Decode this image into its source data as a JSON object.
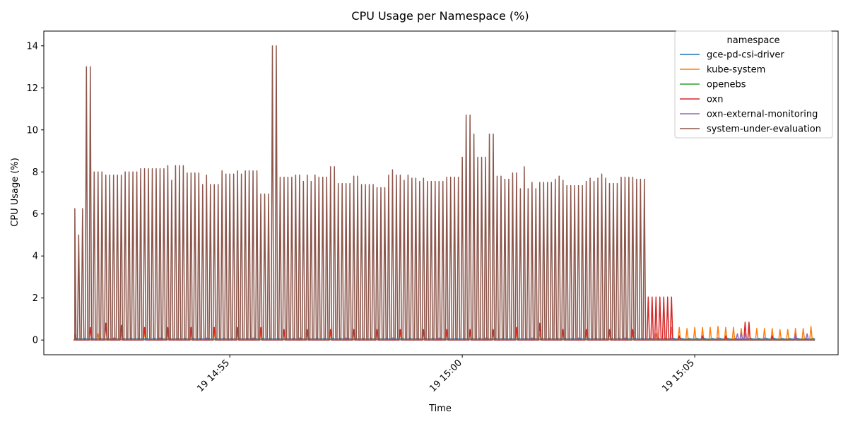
{
  "chart_data": {
    "type": "line",
    "title": "CPU Usage per Namespace (%)",
    "xlabel": "Time",
    "ylabel": "CPU Usage (%)",
    "x_ticks": [
      "19 14:55",
      "19 15:00",
      "19 15:05"
    ],
    "y_ticks": [
      "0",
      "2",
      "4",
      "6",
      "8",
      "10",
      "12",
      "14"
    ],
    "ylim": [
      -0.7,
      14.7
    ],
    "xlim": [
      "14:51:00",
      "15:08:05"
    ],
    "grid": false,
    "legend": {
      "title": "namespace",
      "placement": "top-right"
    },
    "series": [
      {
        "name": "gce-pd-csi-driver",
        "color": "#1f77b4",
        "style": "flat",
        "start": "14:51:40",
        "end": "15:07:35",
        "base": 0.05,
        "spikes": 0.08
      },
      {
        "name": "kube-system",
        "color": "#ff7f0e",
        "style": "spikes",
        "start": "14:51:40",
        "end": "15:07:35",
        "base": 0.0,
        "spikes": [
          [
            "14:51:40",
            0.25
          ],
          [
            "14:52:10",
            0.3
          ],
          [
            "14:52:40",
            0.3
          ],
          [
            "14:53:10",
            0.3
          ],
          [
            "14:53:40",
            0.3
          ],
          [
            "14:54:10",
            0.3
          ],
          [
            "14:54:40",
            0.3
          ],
          [
            "14:55:10",
            0.3
          ],
          [
            "14:55:40",
            0.3
          ],
          [
            "14:56:10",
            0.3
          ],
          [
            "14:56:40",
            0.3
          ],
          [
            "14:57:10",
            0.3
          ],
          [
            "14:57:40",
            0.3
          ],
          [
            "14:58:10",
            0.3
          ],
          [
            "14:58:40",
            0.3
          ],
          [
            "14:59:10",
            0.3
          ],
          [
            "14:59:40",
            0.3
          ],
          [
            "15:00:10",
            0.3
          ],
          [
            "15:00:40",
            0.3
          ],
          [
            "15:01:10",
            0.3
          ],
          [
            "15:01:40",
            0.3
          ],
          [
            "15:02:10",
            0.3
          ],
          [
            "15:02:40",
            0.3
          ],
          [
            "15:03:10",
            0.3
          ],
          [
            "15:03:40",
            0.3
          ],
          [
            "15:04:10",
            0.3
          ],
          [
            "15:04:30",
            0.6
          ],
          [
            "15:04:40",
            0.6
          ],
          [
            "15:04:50",
            0.55
          ],
          [
            "15:05:00",
            0.6
          ],
          [
            "15:05:10",
            0.6
          ],
          [
            "15:05:20",
            0.6
          ],
          [
            "15:05:30",
            0.65
          ],
          [
            "15:05:40",
            0.6
          ],
          [
            "15:05:50",
            0.6
          ],
          [
            "15:06:00",
            0.55
          ],
          [
            "15:06:10",
            0.6
          ],
          [
            "15:06:20",
            0.55
          ],
          [
            "15:06:30",
            0.55
          ],
          [
            "15:06:40",
            0.55
          ],
          [
            "15:06:50",
            0.5
          ],
          [
            "15:07:00",
            0.5
          ],
          [
            "15:07:10",
            0.55
          ],
          [
            "15:07:20",
            0.55
          ],
          [
            "15:07:30",
            0.65
          ]
        ]
      },
      {
        "name": "openebs",
        "color": "#2ca02c",
        "style": "flat",
        "start": "14:51:40",
        "end": "15:07:35",
        "base": 0.02,
        "spikes": 0.04
      },
      {
        "name": "oxn",
        "color": "#d62728",
        "style": "spikes",
        "start": "14:51:40",
        "end": "15:07:35",
        "base": 0.0,
        "spikes": [
          [
            "14:51:40",
            0.3
          ],
          [
            "14:52:00",
            0.6
          ],
          [
            "14:52:20",
            0.8
          ],
          [
            "14:52:40",
            0.7
          ],
          [
            "14:53:10",
            0.6
          ],
          [
            "14:53:40",
            0.6
          ],
          [
            "14:54:10",
            0.6
          ],
          [
            "14:54:40",
            0.6
          ],
          [
            "14:55:10",
            0.6
          ],
          [
            "14:55:40",
            0.6
          ],
          [
            "14:56:10",
            0.5
          ],
          [
            "14:56:40",
            0.5
          ],
          [
            "14:57:10",
            0.5
          ],
          [
            "14:57:40",
            0.5
          ],
          [
            "14:58:10",
            0.5
          ],
          [
            "14:58:40",
            0.5
          ],
          [
            "14:59:10",
            0.5
          ],
          [
            "14:59:40",
            0.5
          ],
          [
            "15:00:10",
            0.5
          ],
          [
            "15:00:40",
            0.5
          ],
          [
            "15:01:10",
            0.6
          ],
          [
            "15:01:40",
            0.8
          ],
          [
            "15:02:10",
            0.5
          ],
          [
            "15:02:40",
            0.5
          ],
          [
            "15:03:10",
            0.5
          ],
          [
            "15:03:40",
            0.5
          ],
          [
            "15:04:00",
            2.05
          ],
          [
            "15:04:05",
            2.05
          ],
          [
            "15:04:10",
            2.05
          ],
          [
            "15:04:15",
            2.05
          ],
          [
            "15:04:20",
            2.05
          ],
          [
            "15:04:25",
            2.05
          ],
          [
            "15:04:30",
            2.05
          ],
          [
            "15:04:40",
            0.2
          ],
          [
            "15:05:10",
            0.2
          ],
          [
            "15:05:40",
            0.2
          ],
          [
            "15:06:05",
            0.85
          ],
          [
            "15:06:10",
            0.85
          ],
          [
            "15:06:40",
            0.2
          ],
          [
            "15:07:10",
            0.2
          ]
        ]
      },
      {
        "name": "oxn-external-monitoring",
        "color": "#9467bd",
        "style": "spikes",
        "start": "14:51:40",
        "end": "15:07:35",
        "base": 0.02,
        "spikes": [
          [
            "14:52:30",
            0.1
          ],
          [
            "14:53:30",
            0.1
          ],
          [
            "14:54:30",
            0.1
          ],
          [
            "14:55:30",
            0.1
          ],
          [
            "14:56:30",
            0.1
          ],
          [
            "14:57:30",
            0.1
          ],
          [
            "14:58:30",
            0.1
          ],
          [
            "14:59:30",
            0.1
          ],
          [
            "15:00:30",
            0.1
          ],
          [
            "15:01:30",
            0.1
          ],
          [
            "15:02:30",
            0.1
          ],
          [
            "15:03:30",
            0.1
          ],
          [
            "15:04:30",
            0.1
          ],
          [
            "15:05:30",
            0.1
          ],
          [
            "15:05:55",
            0.3
          ],
          [
            "15:06:00",
            0.35
          ],
          [
            "15:06:05",
            0.3
          ],
          [
            "15:06:30",
            0.1
          ],
          [
            "15:07:10",
            0.3
          ],
          [
            "15:07:25",
            0.3
          ]
        ]
      },
      {
        "name": "system-under-evaluation",
        "color": "#8c564b",
        "style": "spikes",
        "start": "14:51:40",
        "end": "15:07:35",
        "base": 0.0,
        "spikes": [
          [
            "14:51:40",
            6.25
          ],
          [
            "14:51:45",
            5.0
          ],
          [
            "14:51:50",
            6.25
          ],
          [
            "14:51:55",
            13.0
          ],
          [
            "14:52:00",
            13.0
          ],
          [
            "14:52:05",
            8.0
          ],
          [
            "14:52:10",
            8.0
          ],
          [
            "14:52:15",
            8.0
          ],
          [
            "14:52:20",
            7.85
          ],
          [
            "14:52:25",
            7.85
          ],
          [
            "14:52:30",
            7.85
          ],
          [
            "14:52:35",
            7.85
          ],
          [
            "14:52:40",
            7.85
          ],
          [
            "14:52:45",
            8.0
          ],
          [
            "14:52:50",
            8.0
          ],
          [
            "14:52:55",
            8.0
          ],
          [
            "14:53:00",
            8.0
          ],
          [
            "14:53:05",
            8.15
          ],
          [
            "14:53:10",
            8.15
          ],
          [
            "14:53:15",
            8.15
          ],
          [
            "14:53:20",
            8.15
          ],
          [
            "14:53:25",
            8.15
          ],
          [
            "14:53:30",
            8.15
          ],
          [
            "14:53:35",
            8.15
          ],
          [
            "14:53:40",
            8.3
          ],
          [
            "14:53:45",
            7.6
          ],
          [
            "14:53:50",
            8.3
          ],
          [
            "14:53:55",
            8.3
          ],
          [
            "14:54:00",
            8.3
          ],
          [
            "14:54:05",
            7.95
          ],
          [
            "14:54:10",
            7.95
          ],
          [
            "14:54:15",
            7.95
          ],
          [
            "14:54:20",
            7.95
          ],
          [
            "14:54:25",
            7.4
          ],
          [
            "14:54:30",
            7.85
          ],
          [
            "14:54:35",
            7.4
          ],
          [
            "14:54:40",
            7.4
          ],
          [
            "14:54:45",
            7.4
          ],
          [
            "14:54:50",
            8.05
          ],
          [
            "14:54:55",
            7.9
          ],
          [
            "14:55:00",
            7.9
          ],
          [
            "14:55:05",
            7.9
          ],
          [
            "14:55:10",
            8.05
          ],
          [
            "14:55:15",
            7.9
          ],
          [
            "14:55:20",
            8.05
          ],
          [
            "14:55:25",
            8.05
          ],
          [
            "14:55:30",
            8.05
          ],
          [
            "14:55:35",
            8.05
          ],
          [
            "14:55:40",
            6.95
          ],
          [
            "14:55:45",
            6.95
          ],
          [
            "14:55:50",
            6.95
          ],
          [
            "14:55:55",
            14.0
          ],
          [
            "14:56:00",
            14.0
          ],
          [
            "14:56:05",
            7.75
          ],
          [
            "14:56:10",
            7.75
          ],
          [
            "14:56:15",
            7.75
          ],
          [
            "14:56:20",
            7.75
          ],
          [
            "14:56:25",
            7.85
          ],
          [
            "14:56:30",
            7.85
          ],
          [
            "14:56:35",
            7.55
          ],
          [
            "14:56:40",
            7.85
          ],
          [
            "14:56:45",
            7.55
          ],
          [
            "14:56:50",
            7.85
          ],
          [
            "14:56:55",
            7.75
          ],
          [
            "14:57:00",
            7.75
          ],
          [
            "14:57:05",
            7.75
          ],
          [
            "14:57:10",
            8.25
          ],
          [
            "14:57:15",
            8.25
          ],
          [
            "14:57:20",
            7.45
          ],
          [
            "14:57:25",
            7.45
          ],
          [
            "14:57:30",
            7.45
          ],
          [
            "14:57:35",
            7.45
          ],
          [
            "14:57:40",
            7.8
          ],
          [
            "14:57:45",
            7.8
          ],
          [
            "14:57:50",
            7.4
          ],
          [
            "14:57:55",
            7.4
          ],
          [
            "14:58:00",
            7.4
          ],
          [
            "14:58:05",
            7.4
          ],
          [
            "14:58:10",
            7.25
          ],
          [
            "14:58:15",
            7.25
          ],
          [
            "14:58:20",
            7.25
          ],
          [
            "14:58:25",
            7.85
          ],
          [
            "14:58:30",
            8.1
          ],
          [
            "14:58:35",
            7.85
          ],
          [
            "14:58:40",
            7.85
          ],
          [
            "14:58:45",
            7.6
          ],
          [
            "14:58:50",
            7.85
          ],
          [
            "14:58:55",
            7.7
          ],
          [
            "14:59:00",
            7.7
          ],
          [
            "14:59:05",
            7.55
          ],
          [
            "14:59:10",
            7.7
          ],
          [
            "14:59:15",
            7.55
          ],
          [
            "14:59:20",
            7.55
          ],
          [
            "14:59:25",
            7.55
          ],
          [
            "14:59:30",
            7.55
          ],
          [
            "14:59:35",
            7.55
          ],
          [
            "14:59:40",
            7.75
          ],
          [
            "14:59:45",
            7.75
          ],
          [
            "14:59:50",
            7.75
          ],
          [
            "14:59:55",
            7.75
          ],
          [
            "15:00:00",
            8.7
          ],
          [
            "15:00:05",
            10.7
          ],
          [
            "15:00:10",
            10.7
          ],
          [
            "15:00:15",
            9.8
          ],
          [
            "15:00:20",
            8.7
          ],
          [
            "15:00:25",
            8.7
          ],
          [
            "15:00:30",
            8.7
          ],
          [
            "15:00:35",
            9.8
          ],
          [
            "15:00:40",
            9.8
          ],
          [
            "15:00:45",
            7.8
          ],
          [
            "15:00:50",
            7.8
          ],
          [
            "15:00:55",
            7.65
          ],
          [
            "15:01:00",
            7.65
          ],
          [
            "15:01:05",
            7.95
          ],
          [
            "15:01:10",
            7.95
          ],
          [
            "15:01:15",
            7.2
          ],
          [
            "15:01:20",
            8.25
          ],
          [
            "15:01:25",
            7.2
          ],
          [
            "15:01:30",
            7.5
          ],
          [
            "15:01:35",
            7.2
          ],
          [
            "15:01:40",
            7.5
          ],
          [
            "15:01:45",
            7.5
          ],
          [
            "15:01:50",
            7.5
          ],
          [
            "15:01:55",
            7.5
          ],
          [
            "15:02:00",
            7.65
          ],
          [
            "15:02:05",
            7.8
          ],
          [
            "15:02:10",
            7.6
          ],
          [
            "15:02:15",
            7.35
          ],
          [
            "15:02:20",
            7.35
          ],
          [
            "15:02:25",
            7.35
          ],
          [
            "15:02:30",
            7.35
          ],
          [
            "15:02:35",
            7.35
          ],
          [
            "15:02:40",
            7.55
          ],
          [
            "15:02:45",
            7.7
          ],
          [
            "15:02:50",
            7.55
          ],
          [
            "15:02:55",
            7.7
          ],
          [
            "15:03:00",
            7.9
          ],
          [
            "15:03:05",
            7.7
          ],
          [
            "15:03:10",
            7.45
          ],
          [
            "15:03:15",
            7.45
          ],
          [
            "15:03:20",
            7.45
          ],
          [
            "15:03:25",
            7.75
          ],
          [
            "15:03:30",
            7.75
          ],
          [
            "15:03:35",
            7.75
          ],
          [
            "15:03:40",
            7.75
          ],
          [
            "15:03:45",
            7.65
          ],
          [
            "15:03:50",
            7.65
          ],
          [
            "15:03:55",
            7.65
          ]
        ]
      }
    ]
  }
}
